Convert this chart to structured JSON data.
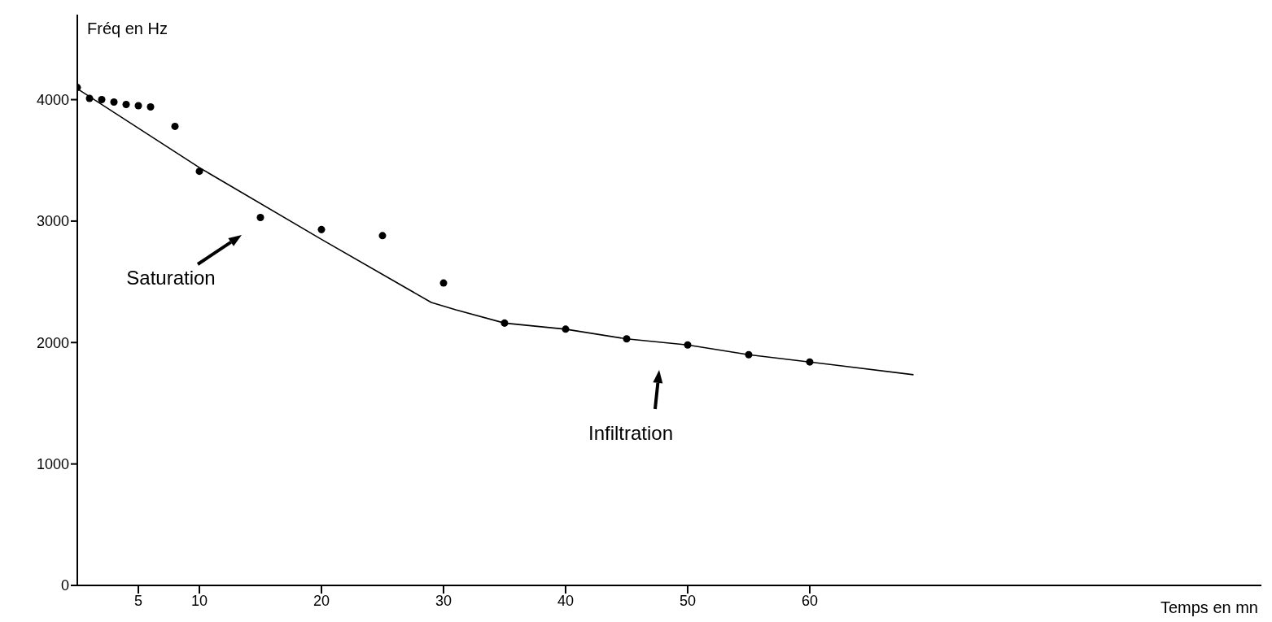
{
  "chart_data": {
    "type": "scatter",
    "xlabel": "Temps en mn",
    "ylabel": "Fréq en Hz",
    "xlim": [
      0,
      97
    ],
    "ylim": [
      0,
      4700
    ],
    "xticks": [
      5,
      10,
      20,
      30,
      40,
      50,
      60
    ],
    "yticks": [
      0,
      1000,
      2000,
      3000,
      4000
    ],
    "grid": false,
    "series": [
      {
        "color": "#000000",
        "marker": "circle",
        "x": [
          0,
          1,
          2,
          3,
          4,
          5,
          6,
          8,
          10,
          15,
          20,
          25,
          30,
          35,
          40,
          45,
          50,
          55,
          60
        ],
        "values": [
          4100,
          4010,
          4000,
          3980,
          3960,
          3950,
          3940,
          3780,
          3410,
          3030,
          2930,
          2880,
          2490,
          2160,
          2110,
          2030,
          1980,
          1900,
          1840
        ]
      },
      {
        "type": "line",
        "color": "#000000",
        "marker": "none",
        "line_style": "solid",
        "x": [
          0,
          10,
          20,
          29,
          31,
          35,
          40,
          45,
          50,
          55,
          60,
          68.5
        ],
        "values": [
          4090,
          3440,
          2850,
          2330,
          2270,
          2160,
          2110,
          2030,
          1980,
          1900,
          1840,
          1735
        ]
      }
    ],
    "annotations": [
      "Saturation",
      "Infiltration"
    ]
  }
}
